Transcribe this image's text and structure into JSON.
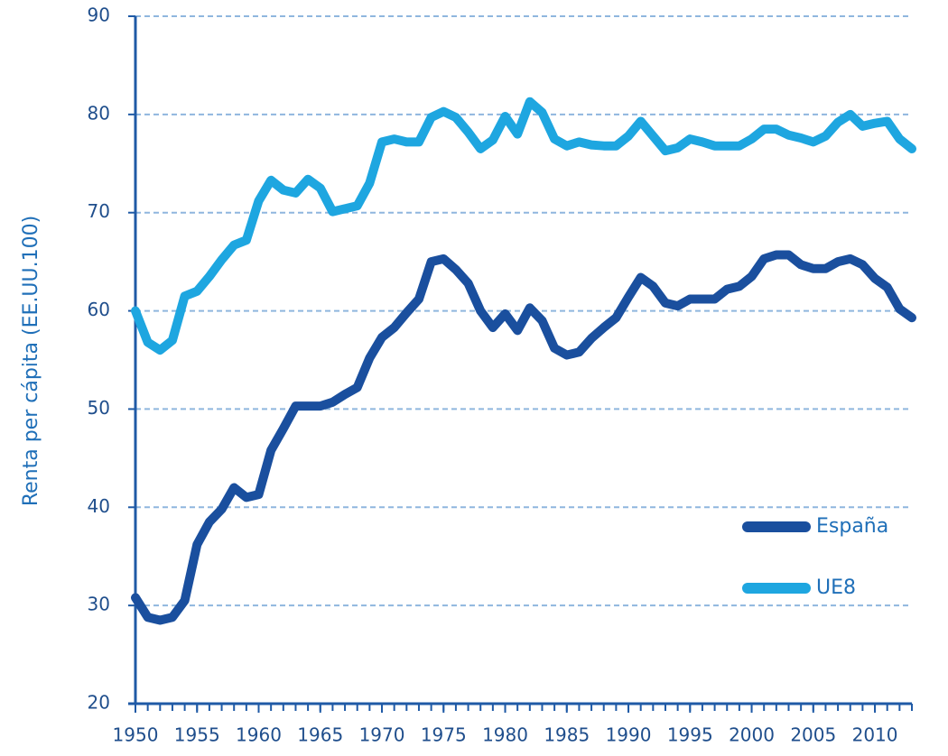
{
  "chart_data": {
    "type": "line",
    "y_label": "Renta per cápita (EE.UU.100)",
    "x": [
      1950,
      1951,
      1952,
      1953,
      1954,
      1955,
      1956,
      1957,
      1958,
      1959,
      1960,
      1961,
      1962,
      1963,
      1964,
      1965,
      1966,
      1967,
      1968,
      1969,
      1970,
      1971,
      1972,
      1973,
      1974,
      1975,
      1976,
      1977,
      1978,
      1979,
      1980,
      1981,
      1982,
      1983,
      1984,
      1985,
      1986,
      1987,
      1988,
      1989,
      1990,
      1991,
      1992,
      1993,
      1994,
      1995,
      1996,
      1997,
      1998,
      1999,
      2000,
      2001,
      2002,
      2003,
      2004,
      2005,
      2006,
      2007,
      2008,
      2009,
      2010,
      2011,
      2012,
      2013
    ],
    "series": [
      {
        "name": "España",
        "color": "#1a4f9e",
        "values": [
          30.8,
          28.8,
          28.5,
          28.8,
          30.5,
          36.2,
          38.5,
          39.8,
          42,
          41,
          41.3,
          45.8,
          48,
          50.3,
          50.3,
          50.3,
          50.7,
          51.5,
          52.2,
          55.2,
          57.3,
          58.3,
          59.8,
          61.2,
          65,
          65.3,
          64.2,
          62.8,
          60,
          58.3,
          59.7,
          58,
          60.3,
          59,
          56.2,
          55.5,
          55.8,
          57.2,
          58.3,
          59.3,
          61.4,
          63.4,
          62.5,
          60.8,
          60.5,
          61.2,
          61.2,
          61.2,
          62.2,
          62.5,
          63.5,
          65.3,
          65.7,
          65.7,
          64.7,
          64.3,
          64.3,
          65,
          65.3,
          64.7,
          63.3,
          62.4,
          60.2,
          59.3
        ]
      },
      {
        "name": "UE8",
        "color": "#1ea6e0",
        "values": [
          60,
          56.8,
          56,
          57,
          61.5,
          62,
          63.5,
          65.2,
          66.7,
          67.2,
          71.2,
          73.3,
          72.3,
          72,
          73.4,
          72.5,
          70.1,
          70.4,
          70.7,
          73,
          77.2,
          77.5,
          77.2,
          77.2,
          79.7,
          80.3,
          79.7,
          78.2,
          76.5,
          77.4,
          79.8,
          78,
          81.3,
          80.2,
          77.5,
          76.8,
          77.2,
          76.9,
          76.8,
          76.8,
          77.8,
          79.3,
          77.8,
          76.3,
          76.6,
          77.5,
          77.2,
          76.8,
          76.8,
          76.8,
          77.5,
          78.5,
          78.5,
          77.9,
          77.6,
          77.2,
          77.8,
          79.2,
          80,
          78.8,
          79.1,
          79.3,
          77.5,
          76.5
        ]
      }
    ],
    "xlim": [
      1950,
      2013
    ],
    "xticks": [
      1950,
      1955,
      1960,
      1965,
      1970,
      1975,
      1980,
      1985,
      1990,
      1995,
      2000,
      2005,
      2010
    ],
    "ylim": [
      20,
      90
    ],
    "yticks": [
      20,
      30,
      40,
      50,
      60,
      70,
      80,
      90
    ],
    "grid": true,
    "legend": "lower right"
  }
}
